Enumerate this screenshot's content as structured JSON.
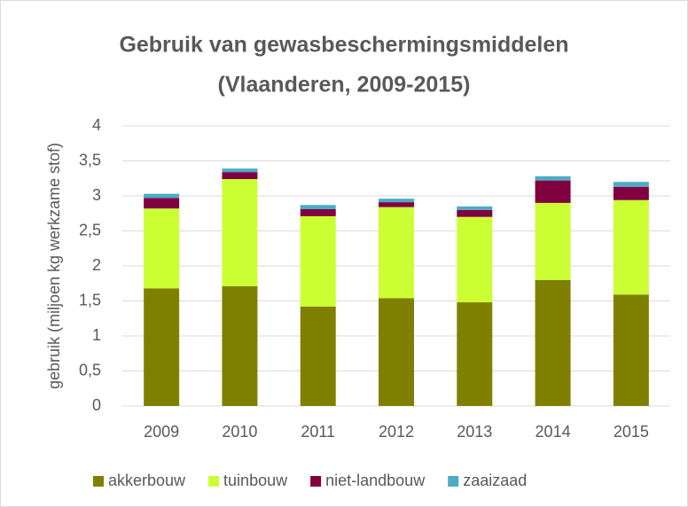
{
  "chart_data": {
    "type": "stacked_bar",
    "title": "Gebruik van gewasbeschermingsmiddelen",
    "subtitle": "(Vlaanderen, 2009-2015)",
    "y_label": "gebruik (miljoen kg werkzame stof)",
    "categories": [
      "2009",
      "2010",
      "2011",
      "2012",
      "2013",
      "2014",
      "2015"
    ],
    "series": [
      {
        "name": "akkerbouw",
        "color": "#808000",
        "values": [
          1.68,
          1.71,
          1.42,
          1.54,
          1.48,
          1.8,
          1.59
        ]
      },
      {
        "name": "tuinbouw",
        "color": "#ccff33",
        "values": [
          1.14,
          1.53,
          1.29,
          1.3,
          1.22,
          1.1,
          1.35
        ]
      },
      {
        "name": "niet-landbouw",
        "color": "#800040",
        "values": [
          0.15,
          0.1,
          0.1,
          0.07,
          0.1,
          0.32,
          0.19
        ]
      },
      {
        "name": "zaaizaad",
        "color": "#4bacc6",
        "values": [
          0.06,
          0.05,
          0.06,
          0.05,
          0.05,
          0.06,
          0.07
        ]
      }
    ],
    "ylim": [
      0,
      4
    ],
    "yticks": [
      0,
      {
        "value": 0.5,
        "label": "0,5"
      },
      1,
      {
        "value": 1.5,
        "label": "1,5"
      },
      2,
      {
        "value": 2.5,
        "label": "2,5"
      },
      3,
      {
        "value": 3.5,
        "label": "3,5"
      },
      4
    ],
    "grid": true,
    "legend": "bottom"
  }
}
